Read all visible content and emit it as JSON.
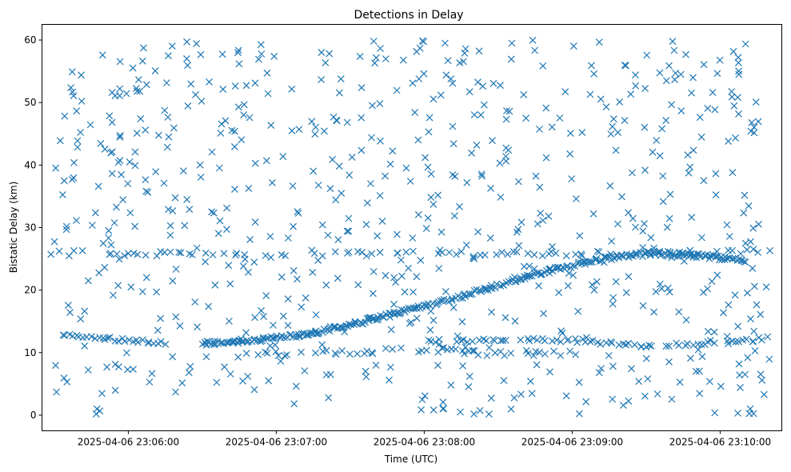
{
  "chart_data": {
    "type": "scatter",
    "title": "Detections in Delay",
    "xlabel": "Time (UTC)",
    "ylabel": "Bistatic Delay (km)",
    "marker": "x",
    "color": "#1f77b4",
    "grid": false,
    "xlim": [
      "2025-04-06 23:05:25",
      "2025-04-06 23:10:25"
    ],
    "ylim": [
      -2.5,
      62.5
    ],
    "xticks": [
      "2025-04-06 23:06:00",
      "2025-04-06 23:07:00",
      "2025-04-06 23:08:00",
      "2025-04-06 23:09:00",
      "2025-04-06 23:10:00"
    ],
    "yticks": [
      0,
      10,
      20,
      30,
      40,
      50,
      60
    ],
    "track_main": [
      {
        "x": "2025-04-06 23:06:30",
        "y": 11.5
      },
      {
        "x": "2025-04-06 23:06:45",
        "y": 11.8
      },
      {
        "x": "2025-04-06 23:07:00",
        "y": 12.3
      },
      {
        "x": "2025-04-06 23:07:15",
        "y": 13.2
      },
      {
        "x": "2025-04-06 23:07:30",
        "y": 14.5
      },
      {
        "x": "2025-04-06 23:07:45",
        "y": 16.0
      },
      {
        "x": "2025-04-06 23:08:00",
        "y": 17.5
      },
      {
        "x": "2025-04-06 23:08:15",
        "y": 19.0
      },
      {
        "x": "2025-04-06 23:08:30",
        "y": 20.8
      },
      {
        "x": "2025-04-06 23:08:45",
        "y": 22.5
      },
      {
        "x": "2025-04-06 23:09:00",
        "y": 24.0
      },
      {
        "x": "2025-04-06 23:09:15",
        "y": 25.2
      },
      {
        "x": "2025-04-06 23:09:30",
        "y": 25.8
      },
      {
        "x": "2025-04-06 23:09:45",
        "y": 25.7
      },
      {
        "x": "2025-04-06 23:10:00",
        "y": 25.2
      },
      {
        "x": "2025-04-06 23:10:10",
        "y": 24.8
      }
    ],
    "track_low_left": [
      {
        "x": "2025-04-06 23:05:33",
        "y": 12.8
      },
      {
        "x": "2025-04-06 23:05:45",
        "y": 12.4
      },
      {
        "x": "2025-04-06 23:06:00",
        "y": 12.0
      },
      {
        "x": "2025-04-06 23:06:15",
        "y": 11.6
      }
    ],
    "track_low_right": [
      {
        "x": "2025-04-06 23:08:00",
        "y": 11.8
      },
      {
        "x": "2025-04-06 23:08:30",
        "y": 12.0
      },
      {
        "x": "2025-04-06 23:09:00",
        "y": 12.0
      },
      {
        "x": "2025-04-06 23:09:30",
        "y": 11.0
      },
      {
        "x": "2025-04-06 23:09:50",
        "y": 11.5
      },
      {
        "x": "2025-04-06 23:10:20",
        "y": 12.3
      }
    ],
    "track_band_26": [
      {
        "x": "2025-04-06 23:05:25",
        "y": 26.0
      },
      {
        "x": "2025-04-06 23:06:00",
        "y": 25.8
      },
      {
        "x": "2025-04-06 23:06:30",
        "y": 25.7
      },
      {
        "x": "2025-04-06 23:07:00",
        "y": 25.5
      },
      {
        "x": "2025-04-06 23:07:30",
        "y": 25.8
      },
      {
        "x": "2025-04-06 23:08:00",
        "y": 26.0
      },
      {
        "x": "2025-04-06 23:08:30",
        "y": 25.7
      },
      {
        "x": "2025-04-06 23:09:00",
        "y": 25.8
      },
      {
        "x": "2025-04-06 23:10:20",
        "y": 26.2
      }
    ],
    "track_band_10": [
      {
        "x": "2025-04-06 23:06:45",
        "y": 9.6
      },
      {
        "x": "2025-04-06 23:07:15",
        "y": 10.0
      },
      {
        "x": "2025-04-06 23:08:00",
        "y": 10.5
      },
      {
        "x": "2025-04-06 23:08:30",
        "y": 9.8
      },
      {
        "x": "2025-04-06 23:09:00",
        "y": 10.2
      }
    ],
    "scatter_y_range": [
      0,
      60
    ],
    "scatter_count": 700
  }
}
